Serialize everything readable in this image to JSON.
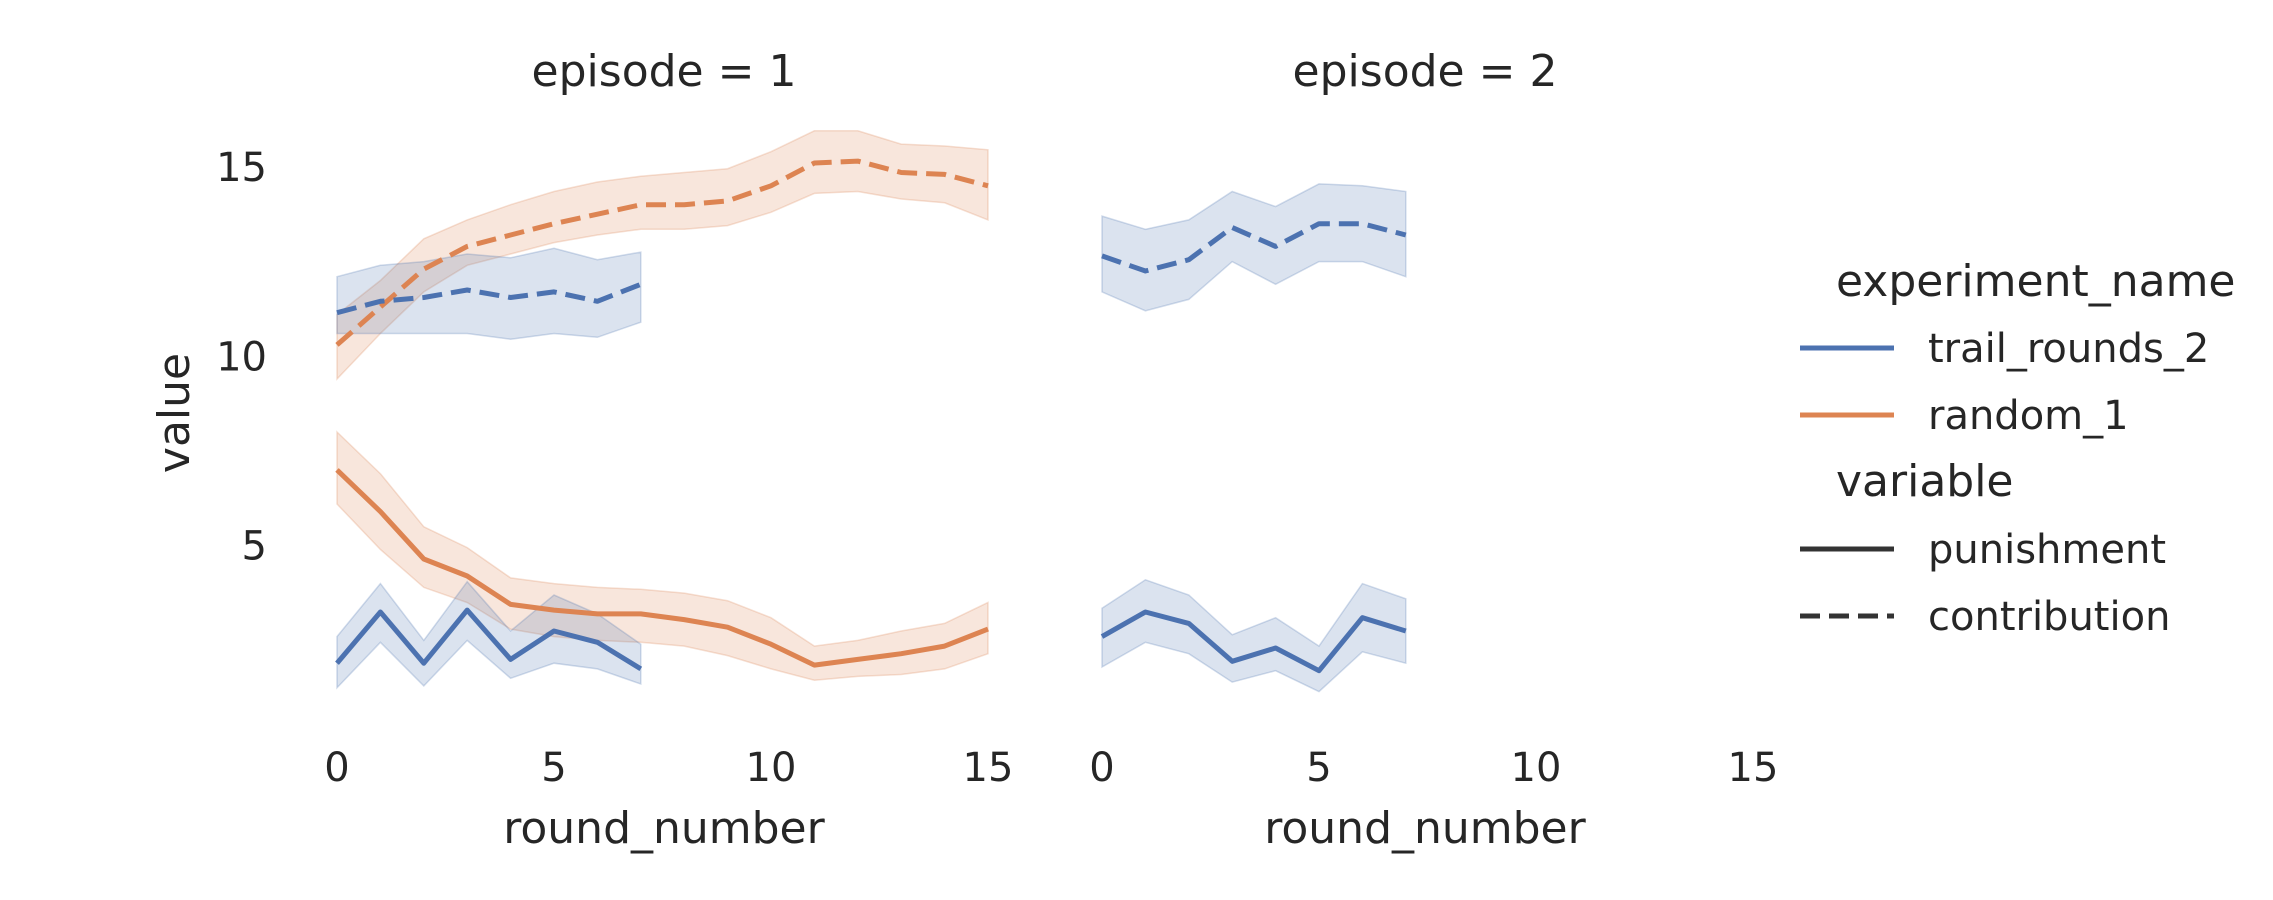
{
  "colors": {
    "trail_rounds_2": "#4c72b0",
    "random_1": "#dd8452",
    "legend_line": "#333333"
  },
  "legend": {
    "hue_title": "experiment_name",
    "hue_items": [
      {
        "label": "trail_rounds_2",
        "color": "#4c72b0"
      },
      {
        "label": "random_1",
        "color": "#dd8452"
      }
    ],
    "style_title": "variable",
    "style_items": [
      {
        "label": "punishment",
        "dash": "solid"
      },
      {
        "label": "contribution",
        "dash": "dashed"
      }
    ]
  },
  "chart_data": [
    {
      "type": "line",
      "title": "episode = 1",
      "xlabel": "round_number",
      "ylabel": "value",
      "xlim": [
        0,
        15
      ],
      "ylim": [
        0.4,
        16.5
      ],
      "xticks": [
        0,
        5,
        10,
        15
      ],
      "yticks": [
        5,
        10,
        15
      ],
      "grid": false,
      "series": [
        {
          "experiment": "random_1",
          "variable": "contribution",
          "color": "#dd8452",
          "dash": "dashed",
          "x": [
            0,
            1,
            2,
            3,
            4,
            5,
            6,
            7,
            8,
            9,
            10,
            11,
            12,
            13,
            14,
            15
          ],
          "y": [
            10.3,
            11.3,
            12.3,
            12.9,
            13.2,
            13.5,
            13.75,
            14.0,
            14.0,
            14.1,
            14.5,
            15.1,
            15.15,
            14.85,
            14.8,
            14.5
          ],
          "ci_low": [
            9.4,
            10.6,
            11.7,
            12.4,
            12.7,
            13.0,
            13.2,
            13.35,
            13.35,
            13.45,
            13.8,
            14.3,
            14.35,
            14.15,
            14.05,
            13.6
          ],
          "ci_high": [
            11.1,
            12.0,
            13.1,
            13.6,
            14.0,
            14.35,
            14.6,
            14.75,
            14.85,
            14.95,
            15.4,
            15.95,
            15.95,
            15.6,
            15.55,
            15.45
          ]
        },
        {
          "experiment": "trail_rounds_2",
          "variable": "contribution",
          "color": "#4c72b0",
          "dash": "dashed",
          "x": [
            0,
            1,
            2,
            3,
            4,
            5,
            6,
            7
          ],
          "y": [
            11.15,
            11.45,
            11.55,
            11.75,
            11.55,
            11.7,
            11.45,
            11.9
          ],
          "ci_low": [
            10.6,
            10.6,
            10.6,
            10.6,
            10.45,
            10.6,
            10.5,
            10.9
          ],
          "ci_high": [
            12.1,
            12.4,
            12.5,
            12.7,
            12.6,
            12.85,
            12.55,
            12.75
          ]
        },
        {
          "experiment": "random_1",
          "variable": "punishment",
          "color": "#dd8452",
          "dash": "solid",
          "x": [
            0,
            1,
            2,
            3,
            4,
            5,
            6,
            7,
            8,
            9,
            10,
            11,
            12,
            13,
            14,
            15
          ],
          "y": [
            7.0,
            5.9,
            4.65,
            4.2,
            3.45,
            3.3,
            3.2,
            3.2,
            3.05,
            2.85,
            2.4,
            1.85,
            2.0,
            2.15,
            2.35,
            2.8
          ],
          "ci_low": [
            6.1,
            4.9,
            3.9,
            3.5,
            2.8,
            2.6,
            2.5,
            2.45,
            2.35,
            2.1,
            1.75,
            1.45,
            1.55,
            1.6,
            1.75,
            2.15
          ],
          "ci_high": [
            8.0,
            6.9,
            5.5,
            4.95,
            4.15,
            4.0,
            3.9,
            3.85,
            3.75,
            3.55,
            3.1,
            2.35,
            2.5,
            2.75,
            2.95,
            3.5
          ]
        },
        {
          "experiment": "trail_rounds_2",
          "variable": "punishment",
          "color": "#4c72b0",
          "dash": "solid",
          "x": [
            0,
            1,
            2,
            3,
            4,
            5,
            6,
            7
          ],
          "y": [
            1.9,
            3.25,
            1.9,
            3.3,
            2.0,
            2.75,
            2.45,
            1.75
          ],
          "ci_low": [
            1.25,
            2.45,
            1.3,
            2.5,
            1.5,
            1.9,
            1.75,
            1.35
          ],
          "ci_high": [
            2.6,
            4.0,
            2.5,
            4.05,
            2.75,
            3.7,
            3.2,
            2.4
          ]
        }
      ]
    },
    {
      "type": "line",
      "title": "episode = 2",
      "xlabel": "round_number",
      "ylabel": "",
      "xlim": [
        0,
        15
      ],
      "ylim": [
        0.4,
        16.5
      ],
      "xticks": [
        0,
        5,
        10,
        15
      ],
      "yticks": [],
      "grid": false,
      "series": [
        {
          "experiment": "trail_rounds_2",
          "variable": "contribution",
          "color": "#4c72b0",
          "dash": "dashed",
          "x": [
            0,
            1,
            2,
            3,
            4,
            5,
            6,
            7
          ],
          "y": [
            12.65,
            12.25,
            12.55,
            13.4,
            12.9,
            13.5,
            13.5,
            13.2
          ],
          "ci_low": [
            11.7,
            11.2,
            11.5,
            12.5,
            11.9,
            12.5,
            12.5,
            12.1
          ],
          "ci_high": [
            13.7,
            13.35,
            13.6,
            14.35,
            13.95,
            14.55,
            14.5,
            14.35
          ]
        },
        {
          "experiment": "trail_rounds_2",
          "variable": "punishment",
          "color": "#4c72b0",
          "dash": "solid",
          "x": [
            0,
            1,
            2,
            3,
            4,
            5,
            6,
            7
          ],
          "y": [
            2.6,
            3.25,
            2.95,
            1.95,
            2.3,
            1.7,
            3.1,
            2.75
          ],
          "ci_low": [
            1.8,
            2.45,
            2.15,
            1.4,
            1.7,
            1.15,
            2.2,
            1.9
          ],
          "ci_high": [
            3.35,
            4.1,
            3.7,
            2.65,
            3.1,
            2.35,
            4.0,
            3.6
          ]
        }
      ]
    }
  ]
}
